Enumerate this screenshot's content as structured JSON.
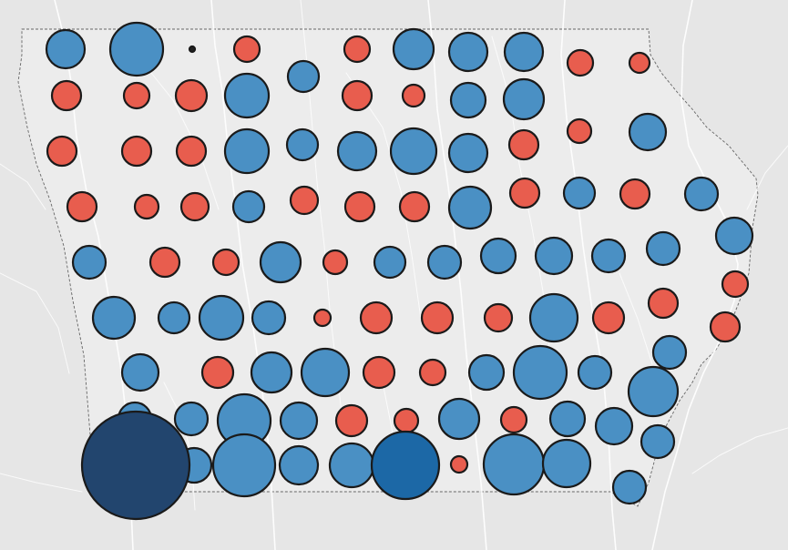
{
  "map": {
    "region": "Iowa",
    "colors": {
      "background": "#e9e9e9",
      "state_fill": "#ececec",
      "rivers": "#ffffff",
      "blue": "#4a90c4",
      "red": "#e85d4e",
      "dark_navy": "#22456e",
      "mid_blue": "#1c68a6",
      "circle_outline": "#1a1a1a"
    },
    "legend": "none"
  }
}
